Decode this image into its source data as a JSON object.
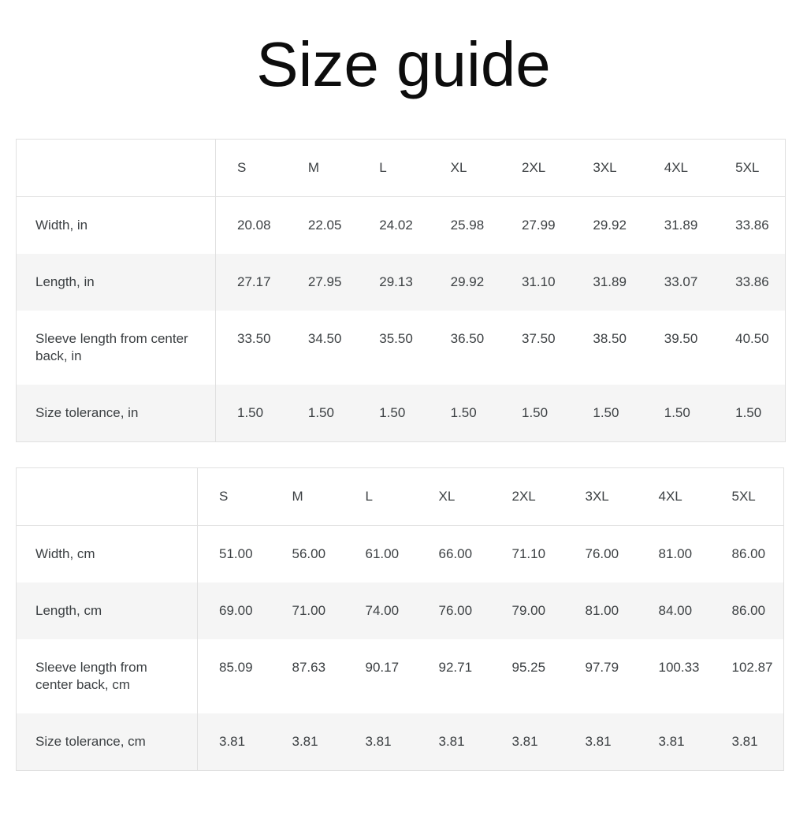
{
  "page": {
    "title": "Size guide"
  },
  "colors": {
    "text": "#3c4043",
    "title": "#0d0d0d",
    "zebra": "#f5f5f5",
    "border": "#e0e0e0"
  },
  "tables": [
    {
      "id": "inches",
      "unit": "in",
      "columns": [
        "S",
        "M",
        "L",
        "XL",
        "2XL",
        "3XL",
        "4XL",
        "5XL"
      ],
      "rows": [
        {
          "label": "Width, in",
          "values": [
            "20.08",
            "22.05",
            "24.02",
            "25.98",
            "27.99",
            "29.92",
            "31.89",
            "33.86"
          ]
        },
        {
          "label": "Length, in",
          "values": [
            "27.17",
            "27.95",
            "29.13",
            "29.92",
            "31.10",
            "31.89",
            "33.07",
            "33.86"
          ]
        },
        {
          "label": "Sleeve length from center back, in",
          "values": [
            "33.50",
            "34.50",
            "35.50",
            "36.50",
            "37.50",
            "38.50",
            "39.50",
            "40.50"
          ]
        },
        {
          "label": "Size tolerance, in",
          "values": [
            "1.50",
            "1.50",
            "1.50",
            "1.50",
            "1.50",
            "1.50",
            "1.50",
            "1.50"
          ]
        }
      ]
    },
    {
      "id": "centimeters",
      "unit": "cm",
      "columns": [
        "S",
        "M",
        "L",
        "XL",
        "2XL",
        "3XL",
        "4XL",
        "5XL"
      ],
      "rows": [
        {
          "label": "Width, cm",
          "values": [
            "51.00",
            "56.00",
            "61.00",
            "66.00",
            "71.10",
            "76.00",
            "81.00",
            "86.00"
          ]
        },
        {
          "label": "Length, cm",
          "values": [
            "69.00",
            "71.00",
            "74.00",
            "76.00",
            "79.00",
            "81.00",
            "84.00",
            "86.00"
          ]
        },
        {
          "label": "Sleeve length from center back, cm",
          "values": [
            "85.09",
            "87.63",
            "90.17",
            "92.71",
            "95.25",
            "97.79",
            "100.33",
            "102.87"
          ]
        },
        {
          "label": "Size tolerance, cm",
          "values": [
            "3.81",
            "3.81",
            "3.81",
            "3.81",
            "3.81",
            "3.81",
            "3.81",
            "3.81"
          ]
        }
      ]
    }
  ]
}
